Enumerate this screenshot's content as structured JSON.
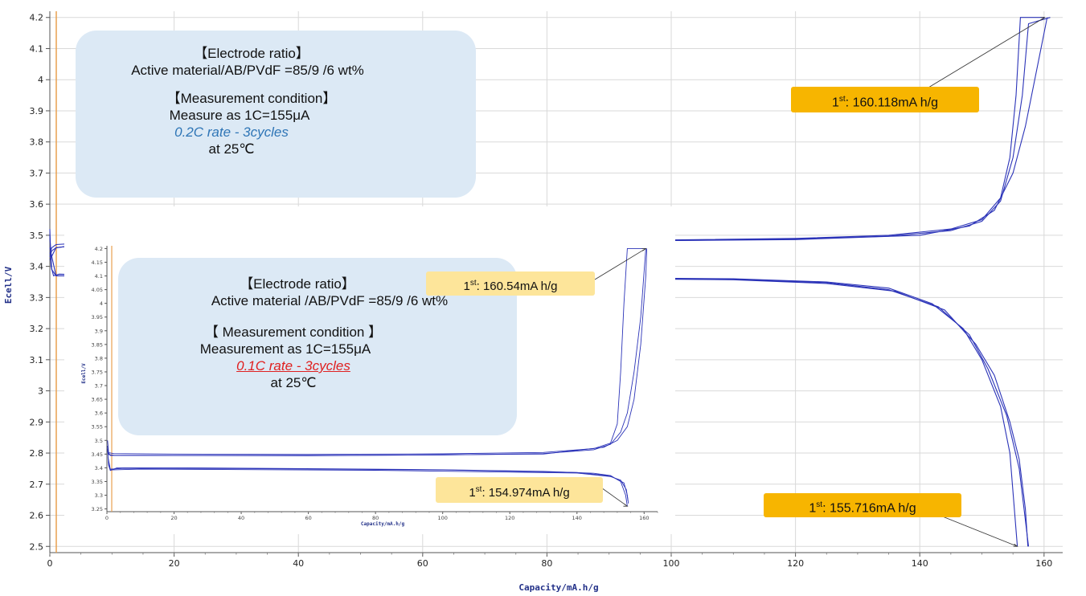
{
  "colors": {
    "curve": "#2b33b8",
    "grid": "#d9d9d9",
    "zero_line": "#e8a050",
    "info_box": "#dce9f5",
    "callout_main": "#f7b500",
    "callout_inset": "#fde59a"
  },
  "chart_data": [
    {
      "type": "line",
      "xlabel": "Capacity/mA.h/g",
      "ylabel": "Ecell/V",
      "xlim": [
        0,
        163
      ],
      "ylim": [
        2.48,
        4.22
      ],
      "x_ticks": [
        "0",
        "20",
        "40",
        "60",
        "80",
        "100",
        "120",
        "140",
        "160"
      ],
      "y_ticks": [
        "2.5",
        "2.6",
        "2.7",
        "2.8",
        "2.9",
        "3",
        "3.1",
        "3.2",
        "3.3",
        "3.4",
        "3.5",
        "3.6",
        "3.7",
        "3.8",
        "3.9",
        "4",
        "4.1",
        "4.2"
      ],
      "grid": true,
      "info_box": {
        "lines": [
          "【Electrode ratio】",
          "Active material/AB/PVdF =85/9 /6 wt%",
          "",
          "【Measurement condition】",
          "Measure as 1C=155μA",
          "0.2C rate - 3cycles",
          "at 25℃"
        ]
      },
      "annotations": [
        {
          "sup": "st",
          "lead": "1",
          "text": ": 160.118mA h/g",
          "x": 160.1,
          "y": 4.2
        },
        {
          "sup": "st",
          "lead": "1",
          "text": ": 155.716mA h/g",
          "x": 155.7,
          "y": 2.5
        }
      ],
      "series": [
        {
          "role": "charge",
          "points": [
            [
              0.0,
              3.44
            ],
            [
              0.3,
              3.46
            ],
            [
              1,
              3.47
            ],
            [
              5,
              3.475
            ],
            [
              20,
              3.478
            ],
            [
              40,
              3.48
            ],
            [
              60,
              3.481
            ],
            [
              80,
              3.483
            ],
            [
              100,
              3.485
            ],
            [
              120,
              3.49
            ],
            [
              135,
              3.5
            ],
            [
              145,
              3.52
            ],
            [
              150,
              3.55
            ],
            [
              153,
              3.62
            ],
            [
              154.5,
              3.75
            ],
            [
              155.5,
              3.95
            ],
            [
              156.2,
              4.2
            ],
            [
              160.1,
              4.2
            ]
          ]
        },
        {
          "role": "charge",
          "points": [
            [
              0.0,
              3.43
            ],
            [
              0.3,
              3.45
            ],
            [
              1,
              3.46
            ],
            [
              5,
              3.47
            ],
            [
              20,
              3.475
            ],
            [
              40,
              3.477
            ],
            [
              60,
              3.479
            ],
            [
              80,
              3.48
            ],
            [
              100,
              3.483
            ],
            [
              120,
              3.488
            ],
            [
              135,
              3.497
            ],
            [
              145,
              3.515
            ],
            [
              150,
              3.545
            ],
            [
              153,
              3.61
            ],
            [
              155,
              3.75
            ],
            [
              156.5,
              3.95
            ],
            [
              157.5,
              4.18
            ],
            [
              161,
              4.2
            ]
          ]
        },
        {
          "role": "charge",
          "points": [
            [
              0.0,
              3.42
            ],
            [
              1,
              3.46
            ],
            [
              5,
              3.47
            ],
            [
              40,
              3.477
            ],
            [
              80,
              3.48
            ],
            [
              120,
              3.486
            ],
            [
              140,
              3.5
            ],
            [
              148,
              3.53
            ],
            [
              152,
              3.58
            ],
            [
              155,
              3.7
            ],
            [
              157,
              3.85
            ],
            [
              159,
              4.05
            ],
            [
              160.5,
              4.2
            ]
          ]
        },
        {
          "role": "discharge",
          "points": [
            [
              0.0,
              3.52
            ],
            [
              0.2,
              3.4
            ],
            [
              0.6,
              3.37
            ],
            [
              1.5,
              3.375
            ],
            [
              10,
              3.37
            ],
            [
              40,
              3.368
            ],
            [
              80,
              3.365
            ],
            [
              110,
              3.36
            ],
            [
              125,
              3.35
            ],
            [
              135,
              3.33
            ],
            [
              142,
              3.28
            ],
            [
              147,
              3.2
            ],
            [
              150,
              3.1
            ],
            [
              153,
              2.95
            ],
            [
              154.5,
              2.8
            ],
            [
              155.7,
              2.5
            ]
          ]
        },
        {
          "role": "discharge",
          "points": [
            [
              0.0,
              3.5
            ],
            [
              0.3,
              3.39
            ],
            [
              1,
              3.37
            ],
            [
              10,
              3.368
            ],
            [
              40,
              3.366
            ],
            [
              80,
              3.363
            ],
            [
              110,
              3.358
            ],
            [
              125,
              3.348
            ],
            [
              135,
              3.325
            ],
            [
              143,
              3.27
            ],
            [
              148,
              3.18
            ],
            [
              151,
              3.07
            ],
            [
              154,
              2.92
            ],
            [
              156,
              2.75
            ],
            [
              157.5,
              2.5
            ]
          ]
        },
        {
          "role": "discharge",
          "points": [
            [
              0.0,
              3.46
            ],
            [
              1,
              3.37
            ],
            [
              10,
              3.367
            ],
            [
              40,
              3.365
            ],
            [
              80,
              3.362
            ],
            [
              110,
              3.357
            ],
            [
              125,
              3.345
            ],
            [
              136,
              3.32
            ],
            [
              144,
              3.26
            ],
            [
              149,
              3.15
            ],
            [
              152,
              3.05
            ],
            [
              154.5,
              2.9
            ],
            [
              156,
              2.78
            ],
            [
              157,
              2.62
            ],
            [
              157.4,
              2.5
            ]
          ]
        }
      ]
    },
    {
      "type": "line",
      "xlabel": "Capacity/mA.h/g",
      "ylabel": "Ecell/V",
      "xlim": [
        0,
        164
      ],
      "ylim": [
        3.24,
        4.21
      ],
      "x_ticks": [
        "0",
        "20",
        "40",
        "60",
        "80",
        "100",
        "120",
        "140",
        "160"
      ],
      "y_ticks": [
        "3.25",
        "3.3",
        "3.35",
        "3.4",
        "3.45",
        "3.5",
        "3.55",
        "3.6",
        "3.65",
        "3.7",
        "3.75",
        "3.8",
        "3.85",
        "3.9",
        "3.95",
        "4",
        "4.05",
        "4.1",
        "4.15",
        "4.2"
      ],
      "grid": false,
      "info_box": {
        "lines": [
          "【Electrode ratio】",
          "Active material /AB/PVdF =85/9 /6 wt%",
          "",
          "【 Measurement condition 】",
          "Measurement as 1C=155μA",
          "0.1C rate - 3cycles",
          "at 25℃"
        ]
      },
      "annotations": [
        {
          "sup": "st",
          "lead": "1",
          "text": ": 160.54mA h/g",
          "x": 160.5,
          "y": 4.2
        },
        {
          "sup": "st",
          "lead": "1",
          "text": ": 154.974mA h/g",
          "x": 155.0,
          "y": 3.26
        }
      ],
      "series": [
        {
          "role": "charge",
          "points": [
            [
              0.2,
              3.5
            ],
            [
              0.5,
              3.455
            ],
            [
              2,
              3.452
            ],
            [
              20,
              3.45
            ],
            [
              60,
              3.449
            ],
            [
              100,
              3.451
            ],
            [
              130,
              3.456
            ],
            [
              145,
              3.47
            ],
            [
              150,
              3.49
            ],
            [
              152,
              3.56
            ],
            [
              153,
              3.75
            ],
            [
              154,
              4.0
            ],
            [
              155,
              4.2
            ],
            [
              160.5,
              4.2
            ]
          ]
        },
        {
          "role": "charge",
          "points": [
            [
              0.2,
              3.48
            ],
            [
              0.5,
              3.448
            ],
            [
              2,
              3.446
            ],
            [
              20,
              3.445
            ],
            [
              60,
              3.445
            ],
            [
              100,
              3.447
            ],
            [
              130,
              3.452
            ],
            [
              145,
              3.466
            ],
            [
              150,
              3.486
            ],
            [
              153,
              3.53
            ],
            [
              155,
              3.6
            ],
            [
              157,
              3.75
            ],
            [
              159,
              3.95
            ],
            [
              160.5,
              4.2
            ]
          ]
        },
        {
          "role": "charge",
          "points": [
            [
              0.2,
              3.46
            ],
            [
              1,
              3.445
            ],
            [
              60,
              3.444
            ],
            [
              130,
              3.45
            ],
            [
              148,
              3.475
            ],
            [
              152,
              3.5
            ],
            [
              155,
              3.55
            ],
            [
              157,
              3.65
            ],
            [
              159,
              3.85
            ],
            [
              160.5,
              4.1
            ],
            [
              160.8,
              4.2
            ]
          ]
        },
        {
          "role": "discharge",
          "points": [
            [
              0.2,
              3.47
            ],
            [
              0.5,
              3.41
            ],
            [
              1,
              3.39
            ],
            [
              3,
              3.4
            ],
            [
              20,
              3.4
            ],
            [
              60,
              3.397
            ],
            [
              100,
              3.393
            ],
            [
              130,
              3.387
            ],
            [
              145,
              3.38
            ],
            [
              150,
              3.372
            ],
            [
              153,
              3.35
            ],
            [
              154.5,
              3.3
            ],
            [
              155,
              3.26
            ]
          ]
        },
        {
          "role": "discharge",
          "points": [
            [
              0.3,
              3.44
            ],
            [
              1,
              3.395
            ],
            [
              5,
              3.398
            ],
            [
              40,
              3.397
            ],
            [
              100,
              3.392
            ],
            [
              140,
              3.383
            ],
            [
              150,
              3.37
            ],
            [
              154,
              3.345
            ],
            [
              155,
              3.3
            ],
            [
              155.3,
              3.27
            ]
          ]
        },
        {
          "role": "discharge",
          "points": [
            [
              0.4,
              3.42
            ],
            [
              1,
              3.392
            ],
            [
              10,
              3.395
            ],
            [
              80,
              3.391
            ],
            [
              140,
              3.381
            ],
            [
              150,
              3.368
            ],
            [
              153,
              3.355
            ],
            [
              154.7,
              3.32
            ],
            [
              155.2,
              3.28
            ]
          ]
        }
      ]
    }
  ]
}
